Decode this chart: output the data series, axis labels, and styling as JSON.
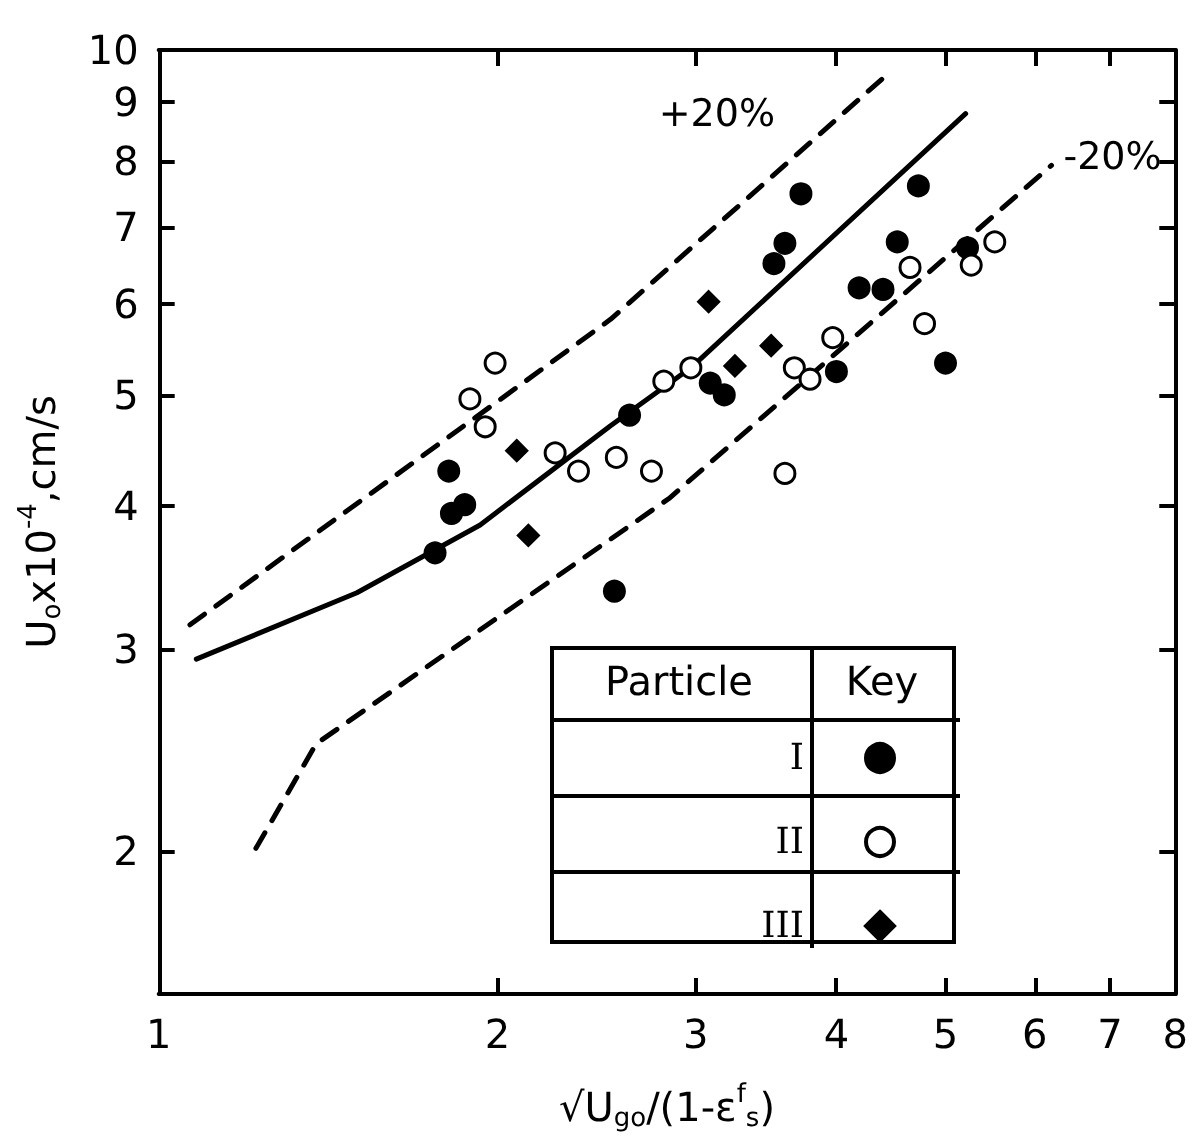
{
  "chart_data": {
    "type": "scatter",
    "xlabel": "√U$_{go}$/(1-ε$^{f}$$_{s}$)",
    "ylabel": "U$_{o}$x10$^{-4}$,cm/s",
    "log": "xy",
    "grid": false,
    "legend": "bottom right",
    "legend_title": "Particle",
    "annotations": [
      "Key",
      "+20%",
      "-20%"
    ],
    "xlim": [
      1,
      8
    ],
    "ylim": [
      1.5,
      10
    ],
    "xticks": [
      1,
      2,
      3,
      4,
      5,
      6,
      7,
      8
    ],
    "yticks": [
      2,
      3,
      4,
      5,
      6,
      7,
      8,
      9,
      10
    ],
    "series": [
      {
        "name": "I",
        "color": "#000000",
        "marker": "circle",
        "x": [
          1.76,
          1.81,
          1.82,
          1.87,
          2.54,
          2.62,
          3.09,
          3.18,
          3.52,
          3.6,
          3.72,
          4.0,
          4.19,
          4.4,
          4.53,
          4.73,
          5.0,
          5.23
        ],
        "values": [
          3.64,
          4.29,
          3.94,
          4.01,
          3.37,
          4.8,
          5.12,
          5.0,
          6.51,
          6.78,
          7.49,
          5.24,
          6.2,
          6.18,
          6.8,
          7.61,
          5.33,
          6.72
        ]
      },
      {
        "name": "II",
        "color": "#ffffff",
        "marker": "circle",
        "x": [
          1.89,
          1.99,
          1.95,
          2.25,
          2.36,
          2.55,
          2.74,
          2.81,
          2.97,
          3.6,
          3.67,
          3.79,
          3.97,
          4.65,
          4.79,
          5.27,
          5.53
        ],
        "values": [
          4.96,
          5.33,
          4.69,
          4.45,
          4.29,
          4.41,
          4.29,
          5.14,
          5.28,
          4.27,
          5.28,
          5.16,
          5.61,
          6.46,
          5.77,
          6.49,
          6.8
        ]
      },
      {
        "name": "III",
        "color": "#000000",
        "marker": "diamond",
        "x": [
          2.08,
          2.13,
          3.08,
          3.25,
          3.5
        ],
        "values": [
          4.47,
          3.77,
          6.03,
          5.3,
          5.52
        ]
      },
      {
        "type": "line",
        "color": "#000000",
        "marker": "none",
        "line_style": "solid",
        "x": [
          1.08,
          1.5,
          1.93,
          2.52,
          2.97,
          5.21
        ],
        "values": [
          2.94,
          3.36,
          3.85,
          4.7,
          5.28,
          8.8
        ]
      },
      {
        "type": "line",
        "color": "#000000",
        "marker": "none",
        "line_style": "dashed",
        "x": [
          1.066,
          2.52,
          4.4
        ],
        "values": [
          3.15,
          5.82,
          9.45
        ]
      },
      {
        "type": "line",
        "color": "#000000",
        "marker": "none",
        "line_style": "dashed",
        "x": [
          1.22,
          1.38,
          2.84,
          6.21
        ],
        "values": [
          2.01,
          2.48,
          4.06,
          7.93
        ]
      }
    ]
  }
}
